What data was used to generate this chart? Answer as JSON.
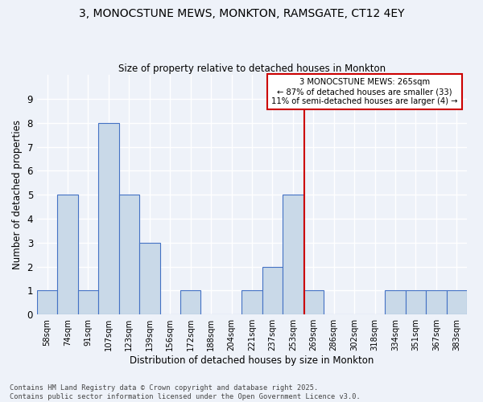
{
  "title": "3, MONOCSTUNE MEWS, MONKTON, RAMSGATE, CT12 4EY",
  "subtitle": "Size of property relative to detached houses in Monkton",
  "xlabel": "Distribution of detached houses by size in Monkton",
  "ylabel": "Number of detached properties",
  "categories": [
    "58sqm",
    "74sqm",
    "91sqm",
    "107sqm",
    "123sqm",
    "139sqm",
    "156sqm",
    "172sqm",
    "188sqm",
    "204sqm",
    "221sqm",
    "237sqm",
    "253sqm",
    "269sqm",
    "286sqm",
    "302sqm",
    "318sqm",
    "334sqm",
    "351sqm",
    "367sqm",
    "383sqm"
  ],
  "values": [
    1,
    5,
    1,
    8,
    5,
    3,
    0,
    1,
    0,
    0,
    1,
    2,
    5,
    1,
    0,
    0,
    0,
    1,
    1,
    1,
    1
  ],
  "bar_color": "#c9d9e8",
  "bar_edge_color": "#4472c4",
  "background_color": "#eef2f9",
  "grid_color": "#ffffff",
  "ylim": [
    0,
    10
  ],
  "yticks": [
    0,
    1,
    2,
    3,
    4,
    5,
    6,
    7,
    8,
    9,
    10
  ],
  "red_line_x": 12.55,
  "annotation_title": "3 MONOCSTUNE MEWS: 265sqm",
  "annotation_line1": "← 87% of detached houses are smaller (33)",
  "annotation_line2": "11% of semi-detached houses are larger (4) →",
  "annotation_box_color": "#ffffff",
  "annotation_box_edge": "#cc0000",
  "red_line_color": "#cc0000",
  "footer1": "Contains HM Land Registry data © Crown copyright and database right 2025.",
  "footer2": "Contains public sector information licensed under the Open Government Licence v3.0."
}
